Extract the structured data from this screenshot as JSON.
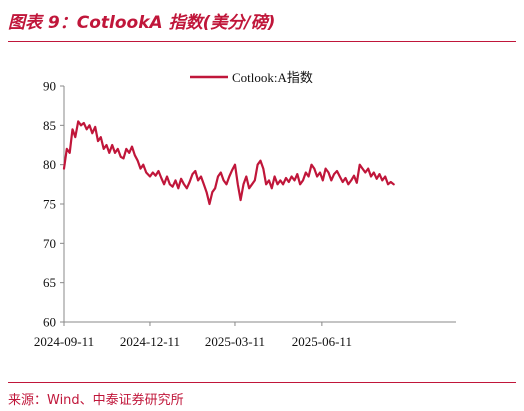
{
  "title": "图表 9：CotlookA 指数(美分/磅)",
  "source": "来源：Wind、中泰证券研究所",
  "colors": {
    "accent": "#c0163a",
    "series": "#c0163a",
    "axis": "#888888"
  },
  "chart_data": {
    "type": "line",
    "title": "",
    "xlabel": "",
    "ylabel": "",
    "ylim": [
      60,
      90
    ],
    "yticks": [
      60,
      65,
      70,
      75,
      80,
      85,
      90
    ],
    "xlim": [
      "2024-09-11",
      "2025-10-31"
    ],
    "xticks": [
      "2024-09-11",
      "2024-12-11",
      "2025-03-11",
      "2025-06-11"
    ],
    "grid": false,
    "legend_position": "top",
    "series": [
      {
        "name": "Cotlook:A指数",
        "color": "#c0163a",
        "points": [
          [
            "2024-09-11",
            79.5
          ],
          [
            "2024-09-14",
            82.0
          ],
          [
            "2024-09-17",
            81.5
          ],
          [
            "2024-09-20",
            84.5
          ],
          [
            "2024-09-23",
            83.5
          ],
          [
            "2024-09-26",
            85.5
          ],
          [
            "2024-09-29",
            85.0
          ],
          [
            "2024-10-02",
            85.3
          ],
          [
            "2024-10-05",
            84.5
          ],
          [
            "2024-10-08",
            85.0
          ],
          [
            "2024-10-11",
            84.0
          ],
          [
            "2024-10-14",
            84.8
          ],
          [
            "2024-10-17",
            83.0
          ],
          [
            "2024-10-20",
            83.5
          ],
          [
            "2024-10-23",
            82.0
          ],
          [
            "2024-10-26",
            82.5
          ],
          [
            "2024-10-29",
            81.5
          ],
          [
            "2024-11-01",
            82.5
          ],
          [
            "2024-11-04",
            81.5
          ],
          [
            "2024-11-07",
            82.0
          ],
          [
            "2024-11-10",
            81.0
          ],
          [
            "2024-11-13",
            80.8
          ],
          [
            "2024-11-16",
            82.0
          ],
          [
            "2024-11-19",
            81.5
          ],
          [
            "2024-11-22",
            82.3
          ],
          [
            "2024-11-25",
            81.2
          ],
          [
            "2024-11-28",
            80.5
          ],
          [
            "2024-12-01",
            79.5
          ],
          [
            "2024-12-04",
            80.0
          ],
          [
            "2024-12-07",
            79.0
          ],
          [
            "2024-12-11",
            78.5
          ],
          [
            "2024-12-14",
            79.0
          ],
          [
            "2024-12-17",
            78.6
          ],
          [
            "2024-12-20",
            79.2
          ],
          [
            "2024-12-23",
            78.3
          ],
          [
            "2024-12-26",
            77.5
          ],
          [
            "2024-12-29",
            78.5
          ],
          [
            "2025-01-01",
            77.5
          ],
          [
            "2025-01-04",
            77.2
          ],
          [
            "2025-01-07",
            78.0
          ],
          [
            "2025-01-10",
            77.0
          ],
          [
            "2025-01-13",
            78.2
          ],
          [
            "2025-01-16",
            77.5
          ],
          [
            "2025-01-19",
            77.0
          ],
          [
            "2025-01-22",
            77.8
          ],
          [
            "2025-01-25",
            78.8
          ],
          [
            "2025-01-28",
            79.2
          ],
          [
            "2025-01-31",
            78.0
          ],
          [
            "2025-02-03",
            78.5
          ],
          [
            "2025-02-06",
            77.5
          ],
          [
            "2025-02-09",
            76.5
          ],
          [
            "2025-02-12",
            75.0
          ],
          [
            "2025-02-15",
            76.5
          ],
          [
            "2025-02-18",
            77.0
          ],
          [
            "2025-02-21",
            78.5
          ],
          [
            "2025-02-24",
            79.0
          ],
          [
            "2025-02-27",
            78.0
          ],
          [
            "2025-03-02",
            77.5
          ],
          [
            "2025-03-05",
            78.5
          ],
          [
            "2025-03-08",
            79.3
          ],
          [
            "2025-03-11",
            80.0
          ],
          [
            "2025-03-14",
            77.5
          ],
          [
            "2025-03-17",
            75.5
          ],
          [
            "2025-03-20",
            77.5
          ],
          [
            "2025-03-23",
            78.5
          ],
          [
            "2025-03-26",
            77.0
          ],
          [
            "2025-03-29",
            77.5
          ],
          [
            "2025-04-01",
            78.0
          ],
          [
            "2025-04-04",
            80.0
          ],
          [
            "2025-04-07",
            80.5
          ],
          [
            "2025-04-10",
            79.5
          ],
          [
            "2025-04-13",
            77.5
          ],
          [
            "2025-04-16",
            78.0
          ],
          [
            "2025-04-19",
            77.0
          ],
          [
            "2025-04-22",
            78.5
          ],
          [
            "2025-04-25",
            77.5
          ],
          [
            "2025-04-28",
            78.0
          ],
          [
            "2025-05-01",
            77.5
          ],
          [
            "2025-05-04",
            78.3
          ],
          [
            "2025-05-07",
            77.8
          ],
          [
            "2025-05-10",
            78.5
          ],
          [
            "2025-05-13",
            78.0
          ],
          [
            "2025-05-16",
            78.8
          ],
          [
            "2025-05-19",
            77.5
          ],
          [
            "2025-05-22",
            78.0
          ],
          [
            "2025-05-25",
            79.0
          ],
          [
            "2025-05-28",
            78.5
          ],
          [
            "2025-05-31",
            80.0
          ],
          [
            "2025-06-03",
            79.5
          ],
          [
            "2025-06-06",
            78.5
          ],
          [
            "2025-06-09",
            79.0
          ],
          [
            "2025-06-12",
            78.0
          ],
          [
            "2025-06-15",
            79.5
          ],
          [
            "2025-06-18",
            79.0
          ],
          [
            "2025-06-21",
            78.0
          ],
          [
            "2025-06-24",
            78.8
          ],
          [
            "2025-06-27",
            79.2
          ],
          [
            "2025-06-30",
            78.5
          ],
          [
            "2025-07-03",
            77.8
          ],
          [
            "2025-07-06",
            78.3
          ],
          [
            "2025-07-09",
            77.5
          ],
          [
            "2025-07-12",
            78.0
          ],
          [
            "2025-07-15",
            78.6
          ],
          [
            "2025-07-18",
            77.7
          ],
          [
            "2025-07-21",
            80.0
          ],
          [
            "2025-07-24",
            79.5
          ],
          [
            "2025-07-27",
            79.0
          ],
          [
            "2025-07-30",
            79.5
          ],
          [
            "2025-08-02",
            78.5
          ],
          [
            "2025-08-05",
            79.0
          ],
          [
            "2025-08-08",
            78.2
          ],
          [
            "2025-08-11",
            78.8
          ],
          [
            "2025-08-14",
            78.0
          ],
          [
            "2025-08-17",
            78.5
          ],
          [
            "2025-08-20",
            77.5
          ],
          [
            "2025-08-23",
            77.8
          ],
          [
            "2025-08-26",
            77.5
          ]
        ]
      }
    ]
  }
}
